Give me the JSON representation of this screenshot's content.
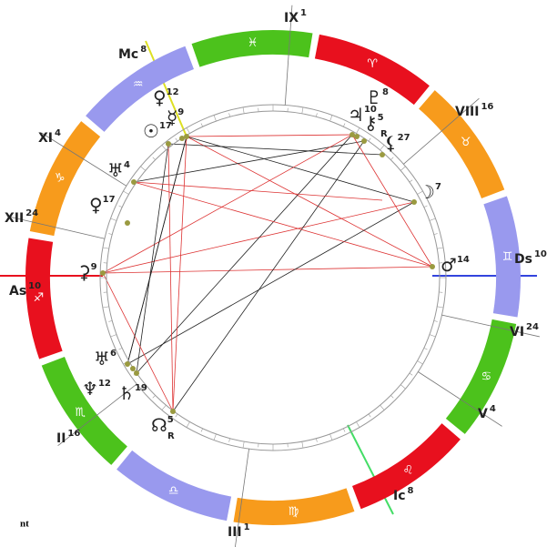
{
  "zodiac": [
    {
      "glyph": "♐",
      "color": "#e8101e"
    },
    {
      "glyph": "♏",
      "color": "#4cc21c"
    },
    {
      "glyph": "♎",
      "color": "#9999ee"
    },
    {
      "glyph": "♍",
      "color": "#f79b1c"
    },
    {
      "glyph": "♌",
      "color": "#e8101e"
    },
    {
      "glyph": "♋",
      "color": "#4cc21c"
    },
    {
      "glyph": "♊",
      "color": "#9999ee"
    },
    {
      "glyph": "♉",
      "color": "#f79b1c"
    },
    {
      "glyph": "♈",
      "color": "#e8101e"
    },
    {
      "glyph": "♓",
      "color": "#4cc21c"
    },
    {
      "glyph": "♒",
      "color": "#9999ee"
    },
    {
      "glyph": "♑",
      "color": "#f79b1c"
    }
  ],
  "houses": [
    {
      "label": "As",
      "degree": 10
    },
    {
      "label": "XII",
      "degree": 24
    },
    {
      "label": "XI",
      "degree": 4
    },
    {
      "label": "Mc",
      "degree": 8
    },
    {
      "label": "IX",
      "degree": 1
    },
    {
      "label": "VIII",
      "degree": 16
    },
    {
      "label": "Ds",
      "degree": 10
    },
    {
      "label": "VI",
      "degree": 24
    },
    {
      "label": "V",
      "degree": 4
    },
    {
      "label": "Ic",
      "degree": 8
    },
    {
      "label": "III",
      "degree": 1
    },
    {
      "label": "II",
      "degree": 16
    }
  ],
  "planets": [
    {
      "glyph": "♀",
      "degree": 12
    },
    {
      "glyph": "☿",
      "degree": 9
    },
    {
      "glyph": "☉",
      "degree": 17
    },
    {
      "glyph": "♅",
      "degree": 4
    },
    {
      "glyph": "♀",
      "degree": 17
    },
    {
      "glyph": "⚳",
      "degree": 9
    },
    {
      "glyph": "♅",
      "degree": 6
    },
    {
      "glyph": "♆",
      "degree": 12
    },
    {
      "glyph": "♄",
      "degree": 19
    },
    {
      "glyph": "☊",
      "degree": 5,
      "retro": "R"
    },
    {
      "glyph": "♇",
      "degree": 8
    },
    {
      "glyph": "♃",
      "degree": 10
    },
    {
      "glyph": "⚷",
      "degree": 5,
      "retro": "R"
    },
    {
      "glyph": "⚸",
      "degree": 27
    },
    {
      "glyph": "☽",
      "degree": 7
    },
    {
      "glyph": "♂",
      "degree": 14
    }
  ],
  "footer": "nt"
}
